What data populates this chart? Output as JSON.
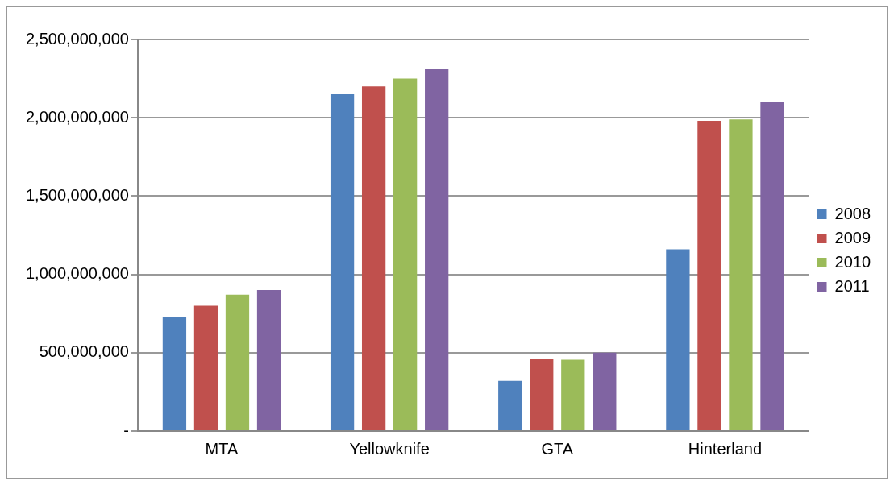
{
  "chart_data": {
    "type": "bar",
    "categories": [
      "MTA",
      "Yellowknife",
      "GTA",
      "Hinterland"
    ],
    "series": [
      {
        "name": "2008",
        "color": "#4f81bd",
        "values": [
          730000000,
          2150000000,
          320000000,
          1160000000
        ]
      },
      {
        "name": "2009",
        "color": "#c0504d",
        "values": [
          800000000,
          2200000000,
          460000000,
          1980000000
        ]
      },
      {
        "name": "2010",
        "color": "#9bbb59",
        "values": [
          870000000,
          2250000000,
          455000000,
          1990000000
        ]
      },
      {
        "name": "2011",
        "color": "#8064a2",
        "values": [
          900000000,
          2310000000,
          500000000,
          2100000000
        ]
      }
    ],
    "ylim": [
      0,
      2500000000
    ],
    "yticks": [
      {
        "value": 0,
        "label": "-"
      },
      {
        "value": 500000000,
        "label": "500,000,000"
      },
      {
        "value": 1000000000,
        "label": "1,000,000,000"
      },
      {
        "value": 1500000000,
        "label": "1,500,000,000"
      },
      {
        "value": 2000000000,
        "label": "2,000,000,000"
      },
      {
        "value": 2500000000,
        "label": "2,500,000,000"
      }
    ],
    "grid": "y",
    "legend": "right"
  }
}
